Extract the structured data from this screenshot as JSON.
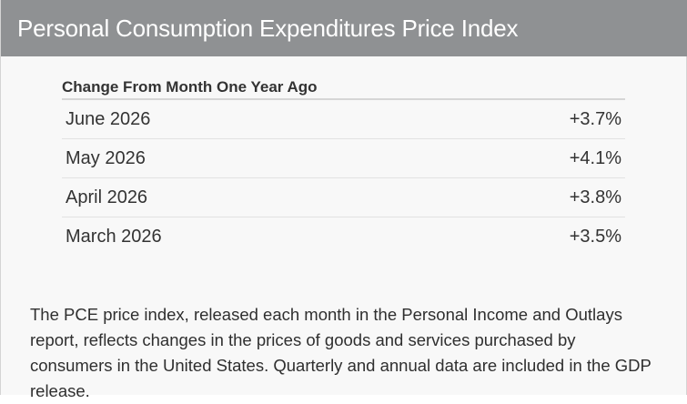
{
  "header": {
    "title": "Personal Consumption Expenditures Price Index"
  },
  "table": {
    "heading": "Change From Month One Year Ago",
    "rows": [
      {
        "month": "June 2026",
        "change": "+3.7%"
      },
      {
        "month": "May 2026",
        "change": "+4.1%"
      },
      {
        "month": "April 2026",
        "change": "+3.8%"
      },
      {
        "month": "March 2026",
        "change": "+3.5%"
      }
    ]
  },
  "description": "The PCE price index, released each month in the Personal Income and Outlays report, reflects changes in the prices of goods and services purchased by consumers in the United States. Quarterly and annual data are included in the GDP release.",
  "colors": {
    "header_background": "#8f9193",
    "header_text": "#ffffff",
    "panel_background": "#f8f8f8",
    "text": "#333333"
  }
}
